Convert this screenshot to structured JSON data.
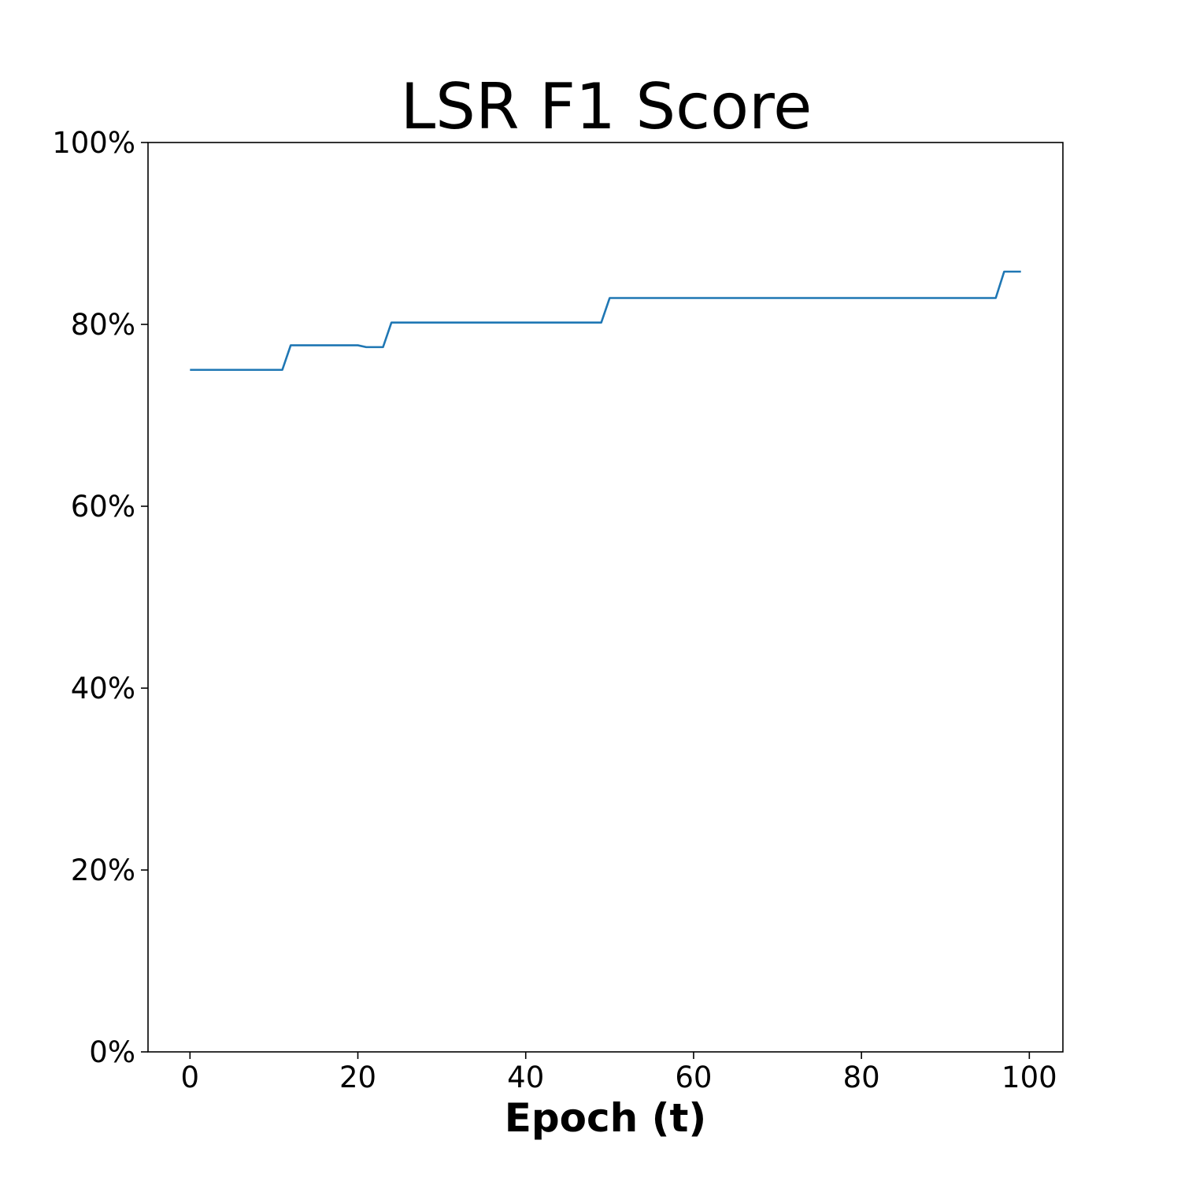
{
  "chart_data": {
    "type": "line",
    "title": "LSR F1 Score",
    "xlabel": "Epoch (t)",
    "ylabel": "",
    "xlim": [
      -5,
      104
    ],
    "ylim": [
      0,
      1
    ],
    "x_ticks": [
      0,
      20,
      40,
      60,
      80,
      100
    ],
    "x_tick_labels": [
      "0",
      "20",
      "40",
      "60",
      "80",
      "100"
    ],
    "y_ticks": [
      0,
      0.2,
      0.4,
      0.6,
      0.8,
      1.0
    ],
    "y_tick_labels": [
      "0%",
      "20%",
      "40%",
      "60%",
      "80%",
      "100%"
    ],
    "grid": false,
    "legend": "none",
    "series": [
      {
        "color": "#1f77b4",
        "x": [
          0,
          1,
          2,
          3,
          4,
          5,
          6,
          7,
          8,
          9,
          10,
          11,
          12,
          13,
          14,
          15,
          16,
          17,
          18,
          19,
          20,
          21,
          22,
          23,
          24,
          25,
          26,
          27,
          28,
          29,
          30,
          31,
          32,
          33,
          34,
          35,
          36,
          37,
          38,
          39,
          40,
          41,
          42,
          43,
          44,
          45,
          46,
          47,
          48,
          49,
          50,
          51,
          52,
          53,
          54,
          55,
          56,
          57,
          58,
          59,
          60,
          61,
          62,
          63,
          64,
          65,
          66,
          67,
          68,
          69,
          70,
          71,
          72,
          73,
          74,
          75,
          76,
          77,
          78,
          79,
          80,
          81,
          82,
          83,
          84,
          85,
          86,
          87,
          88,
          89,
          90,
          91,
          92,
          93,
          94,
          95,
          96,
          97,
          98,
          99
        ],
        "y": [
          0.75,
          0.75,
          0.75,
          0.75,
          0.75,
          0.75,
          0.75,
          0.75,
          0.75,
          0.75,
          0.75,
          0.75,
          0.777,
          0.777,
          0.777,
          0.777,
          0.777,
          0.777,
          0.777,
          0.777,
          0.777,
          0.775,
          0.775,
          0.775,
          0.802,
          0.802,
          0.802,
          0.802,
          0.802,
          0.802,
          0.802,
          0.802,
          0.802,
          0.802,
          0.802,
          0.802,
          0.802,
          0.802,
          0.802,
          0.802,
          0.802,
          0.802,
          0.802,
          0.802,
          0.802,
          0.802,
          0.802,
          0.802,
          0.802,
          0.802,
          0.829,
          0.829,
          0.829,
          0.829,
          0.829,
          0.829,
          0.829,
          0.829,
          0.829,
          0.829,
          0.829,
          0.829,
          0.829,
          0.829,
          0.829,
          0.829,
          0.829,
          0.829,
          0.829,
          0.829,
          0.829,
          0.829,
          0.829,
          0.829,
          0.829,
          0.829,
          0.829,
          0.829,
          0.829,
          0.829,
          0.829,
          0.829,
          0.829,
          0.829,
          0.829,
          0.829,
          0.829,
          0.829,
          0.829,
          0.829,
          0.829,
          0.829,
          0.829,
          0.829,
          0.829,
          0.829,
          0.829,
          0.858,
          0.858,
          0.858
        ]
      }
    ]
  }
}
